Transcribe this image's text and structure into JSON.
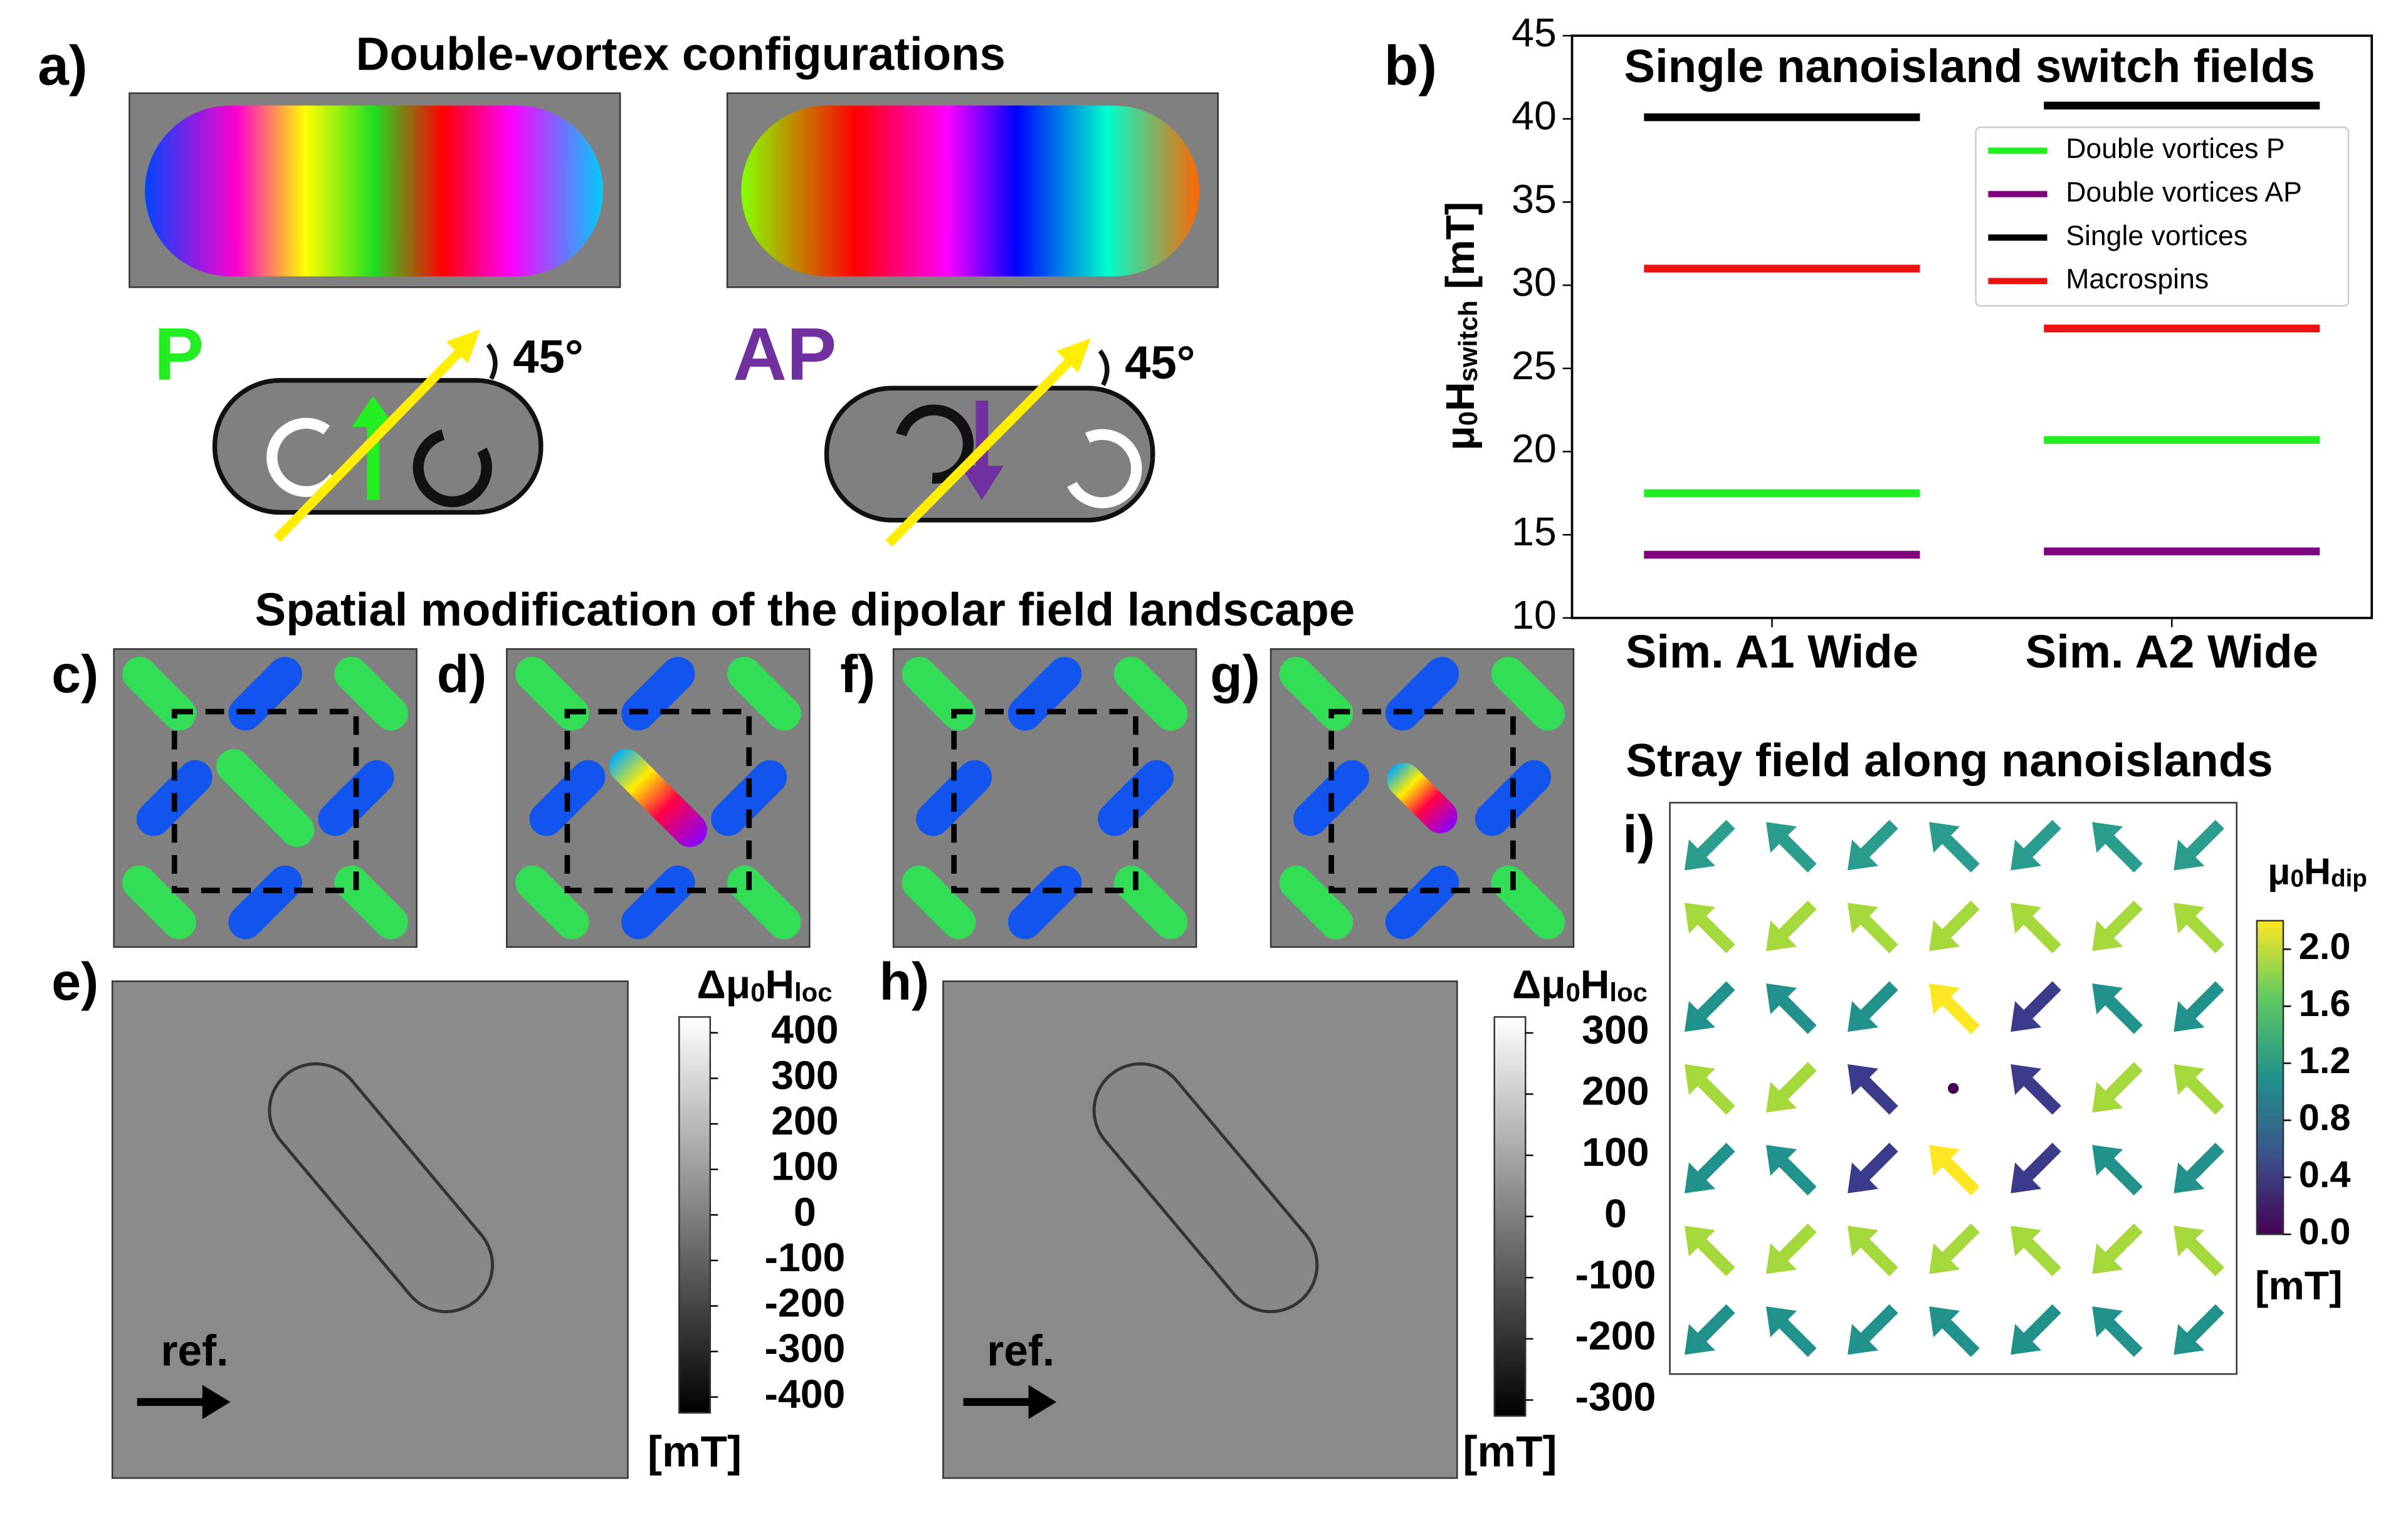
{
  "panel_labels": [
    "a)",
    "b)",
    "c)",
    "d)",
    "e)",
    "f)",
    "g)",
    "h)",
    "i)"
  ],
  "panel_a": {
    "title": "Double-vortex configurations",
    "p_label": "P",
    "ap_label": "AP",
    "angle": "45°"
  },
  "section_title": "Spatial modification of the dipolar field landscape",
  "panel_e": {
    "colorbar_label": [
      "Δμ",
      "0",
      "H",
      "loc"
    ],
    "ticks": [
      400,
      300,
      200,
      100,
      0,
      -100,
      -200,
      -300,
      -400
    ],
    "unit": "[mT]",
    "ref": "ref."
  },
  "panel_h": {
    "colorbar_label": [
      "Δμ",
      "0",
      "H",
      "loc"
    ],
    "ticks": [
      300,
      200,
      100,
      0,
      -100,
      -200,
      -300
    ],
    "unit": "[mT]",
    "ref": "ref."
  },
  "panel_i": {
    "title": "Stray field along nanoislands",
    "colorbar_label": [
      "μ",
      "0",
      "H",
      "dip"
    ],
    "clim": [
      0,
      2.2
    ],
    "ticks": [
      {
        "value": 0.0,
        "label": "0.0"
      },
      {
        "value": 0.4,
        "label": "0.4"
      },
      {
        "value": 0.8,
        "label": "0.8"
      },
      {
        "value": 1.2,
        "label": "1.2"
      },
      {
        "value": 1.6,
        "label": "1.6"
      },
      {
        "value": 2.0,
        "label": "2.0"
      }
    ],
    "unit": "[mT]"
  },
  "chart_data": {
    "type": "hline",
    "title": "Single nanoisland switch fields",
    "ylabel": [
      "μ",
      "0",
      "H",
      "switch",
      " [mT]"
    ],
    "categories": [
      "Sim. A1 Wide",
      "Sim. A2 Wide"
    ],
    "series": [
      {
        "name": "Double vortices P",
        "color": "#22ee22",
        "values": [
          17.5,
          20.7
        ]
      },
      {
        "name": "Double vortices AP",
        "color": "#800080",
        "values": [
          13.8,
          14.0
        ]
      },
      {
        "name": "Single vortices",
        "color": "#000000",
        "values": [
          40.1,
          40.8
        ]
      },
      {
        "name": "Macrospins",
        "color": "#ee1111",
        "values": [
          31.0,
          27.4
        ]
      }
    ],
    "ylim": [
      10,
      45
    ],
    "yticks": [
      10,
      15,
      20,
      25,
      30,
      35,
      40,
      45
    ],
    "legend": "upper right"
  }
}
